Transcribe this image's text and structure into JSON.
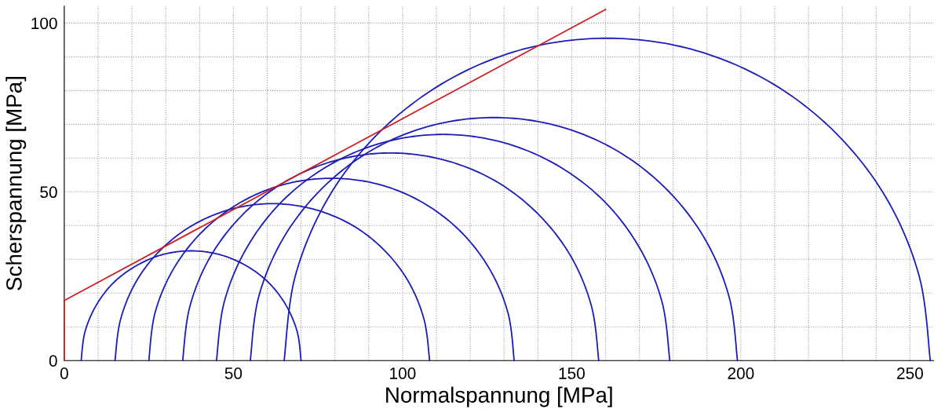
{
  "chart_data": {
    "type": "line",
    "xlabel": "Normalspannung [MPa]",
    "ylabel": "Scherspannung [MPa]",
    "series": [
      {
        "color": "#1c1cb8",
        "x": [
          5,
          6.1,
          9.4,
          14.5,
          21.3,
          29.1,
          37.5,
          45.9,
          53.8,
          60.5,
          65.6,
          68.9,
          70
        ],
        "values": [
          0,
          8.4,
          16.3,
          23.0,
          28.1,
          31.4,
          32.5,
          31.4,
          28.1,
          23.0,
          16.3,
          8.4,
          0
        ]
      },
      {
        "color": "#1c1cb8",
        "x": [
          15,
          16.6,
          21.2,
          28.6,
          38.3,
          49.5,
          61.5,
          73.5,
          84.8,
          94.4,
          101.8,
          106.4,
          108
        ],
        "values": [
          0,
          12.0,
          23.3,
          32.9,
          40.3,
          44.9,
          46.5,
          44.9,
          40.3,
          32.9,
          23.3,
          12.0,
          0
        ]
      },
      {
        "color": "#1c1cb8",
        "x": [
          25,
          26.8,
          32.2,
          40.8,
          52,
          65,
          79,
          93,
          106,
          117.2,
          125.8,
          131.2,
          133
        ],
        "values": [
          0,
          14,
          27,
          38.2,
          46.8,
          52.2,
          54,
          52.2,
          46.8,
          38.2,
          27,
          14,
          0
        ]
      },
      {
        "color": "#1c1cb8",
        "x": [
          35,
          37.1,
          43.2,
          53,
          65.8,
          80.6,
          96.5,
          112.4,
          127.3,
          140,
          149.8,
          155.9,
          158
        ],
        "values": [
          0,
          15.9,
          30.8,
          43.5,
          53.3,
          59.4,
          61.5,
          59.4,
          53.3,
          43.5,
          30.8,
          15.9,
          0
        ]
      },
      {
        "color": "#1c1cb8",
        "x": [
          45,
          47.3,
          54,
          64.6,
          78.5,
          94.6,
          112,
          129.4,
          145.5,
          159.4,
          170,
          176.7,
          179
        ],
        "values": [
          0,
          17.4,
          33.5,
          47.4,
          58,
          64.7,
          67,
          64.7,
          58,
          47.4,
          33.5,
          17.4,
          0
        ]
      },
      {
        "color": "#1c1cb8",
        "x": [
          55,
          57.4,
          64.6,
          76.1,
          91,
          108.4,
          127,
          145.6,
          163,
          177.9,
          189.4,
          196.6,
          199
        ],
        "values": [
          0,
          18.6,
          36,
          50.9,
          62.4,
          69.6,
          72,
          69.6,
          62.4,
          50.9,
          36,
          18.6,
          0
        ]
      },
      {
        "color": "#1c1cb8",
        "x": [
          65,
          68.2,
          77.8,
          93,
          112.8,
          135.8,
          160.5,
          185.2,
          208.3,
          228,
          243.2,
          252.8,
          256
        ],
        "values": [
          0,
          24.7,
          47.8,
          67.5,
          82.7,
          92.3,
          95.5,
          92.3,
          82.7,
          67.5,
          47.8,
          24.7,
          0
        ]
      },
      {
        "color": "#cc2222",
        "x": [
          0,
          0,
          160
        ],
        "values": [
          0,
          17.8,
          104
        ]
      }
    ],
    "xlim": [
      0,
      257
    ],
    "ylim": [
      0,
      105
    ],
    "xticks": [
      0,
      {
        "value": 10,
        "label": null
      },
      {
        "value": 20,
        "label": null
      },
      {
        "value": 30,
        "label": null
      },
      {
        "value": 40,
        "label": null
      },
      50,
      {
        "value": 60,
        "label": null
      },
      {
        "value": 70,
        "label": null
      },
      {
        "value": 80,
        "label": null
      },
      {
        "value": 90,
        "label": null
      },
      100,
      {
        "value": 110,
        "label": null
      },
      {
        "value": 120,
        "label": null
      },
      {
        "value": 130,
        "label": null
      },
      {
        "value": 140,
        "label": null
      },
      150,
      {
        "value": 160,
        "label": null
      },
      {
        "value": 170,
        "label": null
      },
      {
        "value": 180,
        "label": null
      },
      {
        "value": 190,
        "label": null
      },
      200,
      {
        "value": 210,
        "label": null
      },
      {
        "value": 220,
        "label": null
      },
      {
        "value": 230,
        "label": null
      },
      {
        "value": 240,
        "label": null
      },
      250
    ],
    "yticks": [
      0,
      {
        "value": 10,
        "label": null
      },
      {
        "value": 20,
        "label": null
      },
      {
        "value": 30,
        "label": null
      },
      {
        "value": 40,
        "label": null
      },
      50,
      {
        "value": 60,
        "label": null
      },
      {
        "value": 70,
        "label": null
      },
      {
        "value": 80,
        "label": null
      },
      {
        "value": 90,
        "label": null
      },
      100
    ],
    "grid": true,
    "line_style": "solid",
    "marker": "none"
  }
}
